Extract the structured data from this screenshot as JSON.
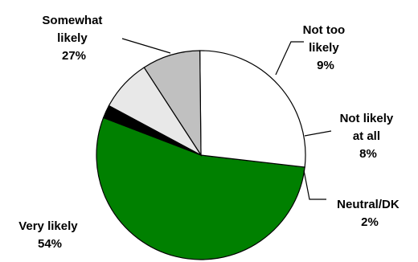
{
  "chart_data": {
    "type": "pie",
    "title": "",
    "slices": [
      {
        "name": "Very likely",
        "value": 54,
        "label": "54%",
        "color": "#008000"
      },
      {
        "name": "Somewhat likely",
        "value": 27,
        "label": "27%",
        "color": "#ffffff"
      },
      {
        "name": "Not too likely",
        "value": 9,
        "label": "9%",
        "color": "#c0c0c0"
      },
      {
        "name": "Not likely at all",
        "value": 8,
        "label": "8%",
        "color": "#e8e8e8"
      },
      {
        "name": "Neutral/DK",
        "value": 2,
        "label": "2%",
        "color": "#000000"
      }
    ],
    "label_lines": [
      [
        "Very likely",
        "54%"
      ],
      [
        "Somewhat",
        "likely",
        "27%"
      ],
      [
        "Not too",
        "likely",
        "9%"
      ],
      [
        "Not likely",
        "at all",
        "8%"
      ],
      [
        "Neutral/DK",
        "2%"
      ]
    ],
    "legend": "none"
  }
}
